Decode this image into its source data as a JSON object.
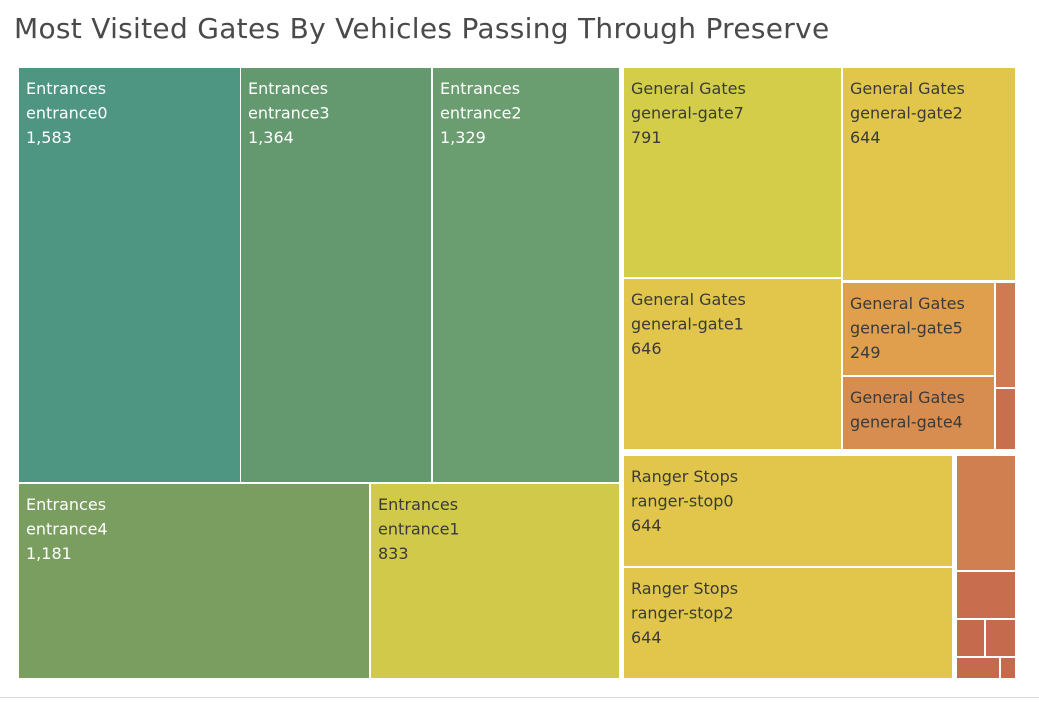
{
  "title": "Most Visited Gates By Vehicles Passing Through Preserve",
  "chart_data": {
    "type": "treemap",
    "title": "Most Visited Gates By Vehicles Passing Through Preserve",
    "groups": [
      {
        "name": "Entrances",
        "items": [
          {
            "label": "entrance0",
            "value": 1583,
            "display": "1,583",
            "color": "#4e9682"
          },
          {
            "label": "entrance3",
            "value": 1364,
            "display": "1,364",
            "color": "#64996f"
          },
          {
            "label": "entrance2",
            "value": 1329,
            "display": "1,329",
            "color": "#6a9d70"
          },
          {
            "label": "entrance4",
            "value": 1181,
            "display": "1,181",
            "color": "#7a9d60"
          },
          {
            "label": "entrance1",
            "value": 833,
            "display": "833",
            "color": "#d0c94a"
          }
        ]
      },
      {
        "name": "General Gates",
        "items": [
          {
            "label": "general-gate7",
            "value": 791,
            "display": "791",
            "color": "#d4cd4a"
          },
          {
            "label": "general-gate2",
            "value": 644,
            "display": "644",
            "color": "#e2c64b"
          },
          {
            "label": "general-gate1",
            "value": 646,
            "display": "646",
            "color": "#e2c64b"
          },
          {
            "label": "general-gate5",
            "value": 249,
            "display": "249",
            "color": "#e09f4c"
          },
          {
            "label": "general-gate4",
            "value": null,
            "display": "",
            "color": "#d78d50"
          }
        ]
      },
      {
        "name": "Ranger Stops",
        "items": [
          {
            "label": "ranger-stop0",
            "value": 644,
            "display": "644",
            "color": "#e2c64b"
          },
          {
            "label": "ranger-stop2",
            "value": 644,
            "display": "644",
            "color": "#e2c64b"
          }
        ]
      }
    ],
    "unlabeled_tile_colors": [
      "#d07a53",
      "#c76f4f",
      "#d08050",
      "#c86e4e",
      "#c56a4c"
    ]
  }
}
